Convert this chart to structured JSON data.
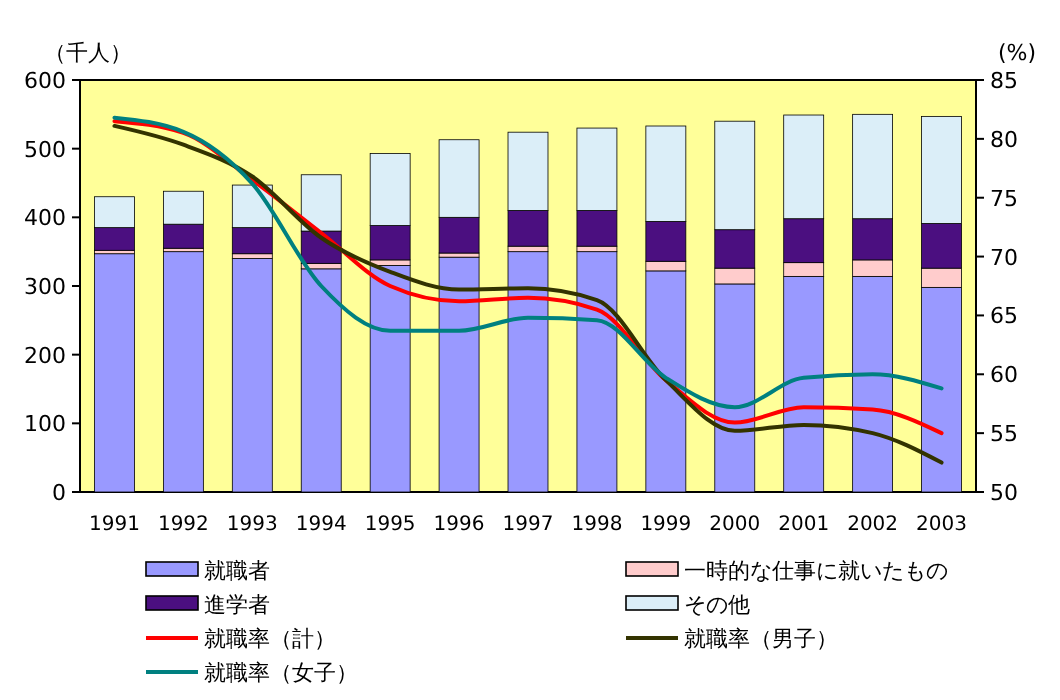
{
  "chart_data": {
    "type": "bar",
    "stacked": true,
    "ylabel": "（千人）",
    "y2label": "(%)",
    "categories": [
      "1991",
      "1992",
      "1993",
      "1994",
      "1995",
      "1996",
      "1997",
      "1998",
      "1999",
      "2000",
      "2001",
      "2002",
      "2003"
    ],
    "series": [
      {
        "name": "就職者",
        "color": "#9999ff",
        "values": [
          347,
          350,
          340,
          325,
          330,
          342,
          350,
          350,
          322,
          303,
          314,
          314,
          298
        ]
      },
      {
        "name": "一時的な仕事に就いたもの",
        "color": "#ffcccc",
        "values": [
          5,
          5,
          7,
          8,
          8,
          6,
          8,
          8,
          14,
          23,
          20,
          24,
          28
        ]
      },
      {
        "name": "進学者",
        "color": "#4b0f80",
        "values": [
          33,
          35,
          38,
          47,
          50,
          52,
          52,
          52,
          58,
          56,
          64,
          60,
          65
        ]
      },
      {
        "name": "その他",
        "color": "#dbeef8",
        "values": [
          45,
          48,
          62,
          82,
          105,
          113,
          114,
          120,
          139,
          158,
          151,
          152,
          156
        ]
      },
      {
        "name": "就職率（計）",
        "type": "line",
        "axis": "y2",
        "color": "#ff0000",
        "values": [
          81.5,
          80.5,
          76.5,
          72,
          67.5,
          66.2,
          66.5,
          65.5,
          59.5,
          55.9,
          57.2,
          57,
          55
        ]
      },
      {
        "name": "就職率（男子）",
        "type": "line",
        "axis": "y2",
        "color": "#333300",
        "values": [
          81.1,
          79.5,
          76.8,
          71.6,
          68.7,
          67.2,
          67.3,
          66.3,
          59.5,
          55.2,
          55.7,
          55,
          52.5
        ]
      },
      {
        "name": "就職率（女子）",
        "type": "line",
        "axis": "y2",
        "color": "#008080",
        "values": [
          81.8,
          80.6,
          76.2,
          67.5,
          63.7,
          63.7,
          64.8,
          64.6,
          59.7,
          57.2,
          59.7,
          60,
          58.8
        ]
      }
    ],
    "ylim": [
      0,
      600
    ],
    "yticks": [
      0,
      100,
      200,
      300,
      400,
      500,
      600
    ],
    "y2lim": [
      50,
      85
    ],
    "y2ticks": [
      50,
      55,
      60,
      65,
      70,
      75,
      80,
      85
    ],
    "grid": false,
    "legend": "bottom"
  }
}
